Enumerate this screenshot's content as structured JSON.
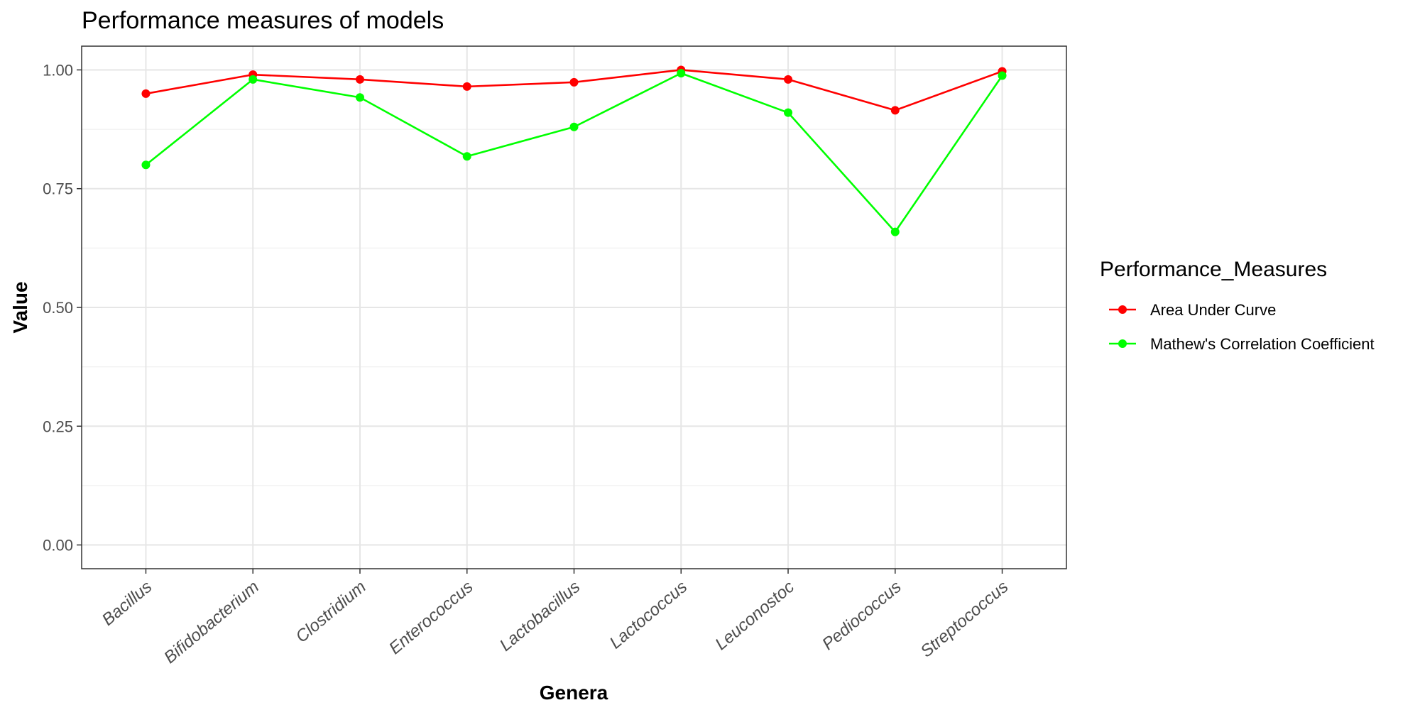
{
  "chart_data": {
    "type": "line",
    "title": "Performance measures of models",
    "xlabel": "Genera",
    "ylabel": "Value",
    "categories": [
      "Bacillus",
      "Bifidobacterium",
      "Clostridium",
      "Enterococcus",
      "Lactobacillus",
      "Lactococcus",
      "Leuconostoc",
      "Pediococcus",
      "Streptococcus"
    ],
    "ylim": [
      -0.05,
      1.05
    ],
    "yticks": [
      0.0,
      0.25,
      0.5,
      0.75,
      1.0
    ],
    "ytick_labels": [
      "0.00",
      "0.25",
      "0.50",
      "0.75",
      "1.00"
    ],
    "grid": true,
    "legend": {
      "title": "Performance_Measures",
      "position": "right"
    },
    "series": [
      {
        "name": "Area Under Curve",
        "color": "#ff0000",
        "values": [
          0.95,
          0.99,
          0.98,
          0.965,
          0.974,
          1.0,
          0.98,
          0.915,
          0.997
        ]
      },
      {
        "name": "Mathew's Correlation Coefficient",
        "color": "#00ff00",
        "values": [
          0.8,
          0.98,
          0.942,
          0.818,
          0.88,
          0.993,
          0.91,
          0.659,
          0.988
        ]
      }
    ]
  }
}
